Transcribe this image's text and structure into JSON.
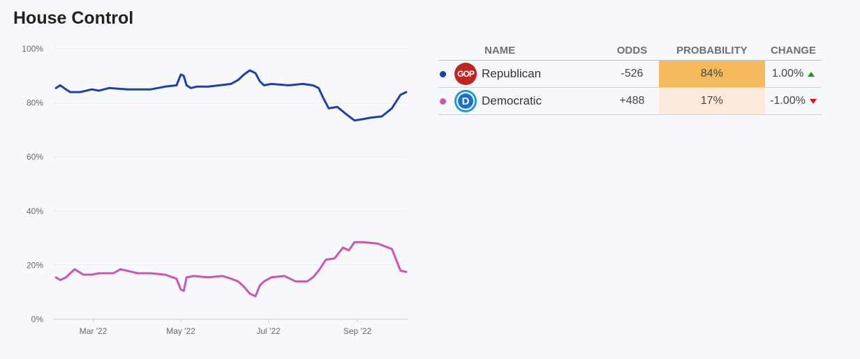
{
  "header": {
    "title": "House Control"
  },
  "colors": {
    "republican": "#1c3fb0",
    "democratic": "#cc55b4",
    "prob_high": "#f5b95e",
    "prob_low": "#fbeadb",
    "up": "#1a9a1a",
    "down": "#e01010"
  },
  "chart_data": {
    "type": "line",
    "title": "",
    "xlabel": "",
    "ylabel": "",
    "ylim": [
      0,
      100
    ],
    "y_ticks": [
      "0%",
      "20%",
      "40%",
      "60%",
      "80%",
      "100%"
    ],
    "x_ticks": [
      {
        "label": "Mar '22",
        "date": "2022-03-01"
      },
      {
        "label": "May '22",
        "date": "2022-05-01"
      },
      {
        "label": "Jul '22",
        "date": "2022-07-01"
      },
      {
        "label": "Sep '22",
        "date": "2022-09-01"
      }
    ],
    "x_range": [
      "2022-02-01",
      "2022-10-06"
    ],
    "grid": true,
    "series": [
      {
        "name": "Republican",
        "color": "#1c3fb0",
        "x": [
          "2022-02-03",
          "2022-02-06",
          "2022-02-10",
          "2022-02-13",
          "2022-02-20",
          "2022-02-28",
          "2022-03-05",
          "2022-03-12",
          "2022-03-25",
          "2022-04-10",
          "2022-04-20",
          "2022-04-28",
          "2022-05-01",
          "2022-05-03",
          "2022-05-05",
          "2022-05-08",
          "2022-05-12",
          "2022-05-20",
          "2022-05-28",
          "2022-06-05",
          "2022-06-10",
          "2022-06-14",
          "2022-06-18",
          "2022-06-22",
          "2022-06-25",
          "2022-06-28",
          "2022-07-03",
          "2022-07-15",
          "2022-07-25",
          "2022-08-01",
          "2022-08-05",
          "2022-08-08",
          "2022-08-12",
          "2022-08-18",
          "2022-08-25",
          "2022-08-30",
          "2022-09-05",
          "2022-09-10",
          "2022-09-18",
          "2022-09-25",
          "2022-10-01",
          "2022-10-05"
        ],
        "y": [
          85.5,
          86.5,
          85.0,
          84.0,
          84.0,
          85.0,
          84.5,
          85.5,
          85.0,
          85.0,
          86.0,
          86.5,
          90.5,
          90.0,
          86.5,
          85.5,
          86.0,
          86.0,
          86.5,
          87.0,
          88.5,
          90.5,
          92.0,
          91.0,
          88.0,
          86.5,
          87.0,
          86.5,
          87.0,
          86.5,
          85.5,
          82.0,
          78.0,
          78.5,
          75.5,
          73.5,
          74.0,
          74.5,
          75.0,
          78.0,
          83.0,
          84.0
        ]
      },
      {
        "name": "Democratic",
        "color": "#cc55b4",
        "x": [
          "2022-02-03",
          "2022-02-06",
          "2022-02-10",
          "2022-02-16",
          "2022-02-22",
          "2022-02-28",
          "2022-03-05",
          "2022-03-15",
          "2022-03-20",
          "2022-04-01",
          "2022-04-10",
          "2022-04-20",
          "2022-04-28",
          "2022-05-01",
          "2022-05-03",
          "2022-05-05",
          "2022-05-10",
          "2022-05-20",
          "2022-05-30",
          "2022-06-05",
          "2022-06-10",
          "2022-06-14",
          "2022-06-18",
          "2022-06-22",
          "2022-06-25",
          "2022-06-28",
          "2022-07-03",
          "2022-07-12",
          "2022-07-20",
          "2022-07-28",
          "2022-08-01",
          "2022-08-05",
          "2022-08-10",
          "2022-08-16",
          "2022-08-22",
          "2022-08-26",
          "2022-08-30",
          "2022-09-05",
          "2022-09-15",
          "2022-09-25",
          "2022-10-01",
          "2022-10-05"
        ],
        "y": [
          15.5,
          14.5,
          15.5,
          18.5,
          16.5,
          16.5,
          17.0,
          17.0,
          18.5,
          17.0,
          17.0,
          16.5,
          15.0,
          11.0,
          10.5,
          15.5,
          16.0,
          15.5,
          16.0,
          15.0,
          14.0,
          12.0,
          9.5,
          8.5,
          12.5,
          14.0,
          15.5,
          16.0,
          14.0,
          14.0,
          15.5,
          18.0,
          22.0,
          22.5,
          26.5,
          25.5,
          28.5,
          28.5,
          28.0,
          26.0,
          18.0,
          17.5
        ]
      }
    ]
  },
  "table": {
    "headers": {
      "name": "NAME",
      "odds": "ODDS",
      "probability": "PROBABILITY",
      "change": "CHANGE"
    },
    "rows": [
      {
        "dot_color": "#1c3fb0",
        "logo_text": "GOP",
        "name": "Republican",
        "odds": "-526",
        "probability": "84%",
        "change": "1.00%",
        "direction": "up"
      },
      {
        "dot_color": "#cc55b4",
        "logo_text": "D",
        "name": "Democratic",
        "odds": "+488",
        "probability": "17%",
        "change": "-1.00%",
        "direction": "down"
      }
    ]
  }
}
